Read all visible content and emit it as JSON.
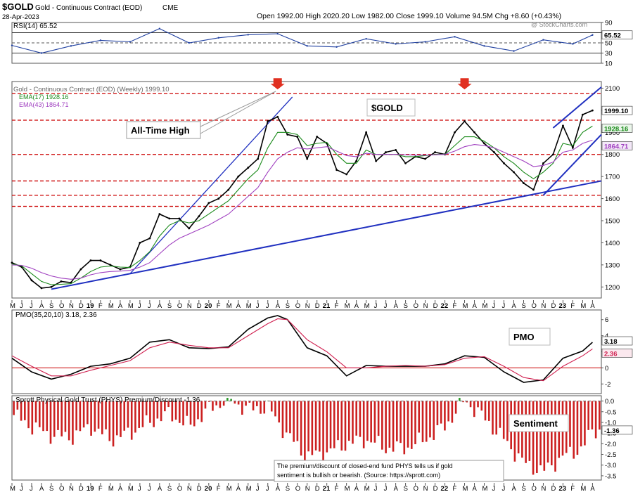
{
  "header": {
    "ticker": "$GOLD",
    "name": "Gold - Continuous Contract (EOD)",
    "exchange": "CME",
    "date": "28-Apr-2023",
    "quote": "Open 1992.00  High 2020.20  Low 1982.00  Close 1999.10  Volume 94.5M  Chg +8.60 (+0.43%)",
    "watermark": "@ StockCharts.com"
  },
  "annotations": {
    "all_time_high": "All-Time High",
    "gold_box": "$GOLD",
    "pmo_box": "PMO",
    "sentiment_box": "Sentiment",
    "note_line1": "The premium/discount of closed-end fund PHYS tells us if gold",
    "note_line2": "sentiment is bullish or bearish. (Source: https://sprott.com)"
  },
  "colors": {
    "price": "#000000",
    "ema17": "#1a8a1a",
    "ema43": "#a040c0",
    "pmo": "#000000",
    "pmo_signal": "#d02050",
    "trendline": "#2030c0",
    "resistance": "#cc0000",
    "sentiment_bar": "#cc2020",
    "sentiment_pos": "#2a9a2a",
    "rsi": "#2040a0",
    "arrow": "#e03020"
  },
  "chart_data": [
    {
      "type": "line",
      "panel": "RSI",
      "legend": "RSI(14) 65.52",
      "ylim": [
        10,
        90
      ],
      "ticks": [
        10,
        30,
        50,
        70,
        90
      ],
      "current_label": "65.52",
      "x": [
        "2018-05",
        "2018-08",
        "2018-11",
        "2019-02",
        "2019-05",
        "2019-08",
        "2019-11",
        "2020-02",
        "2020-05",
        "2020-08",
        "2020-11",
        "2021-02",
        "2021-05",
        "2021-08",
        "2021-11",
        "2022-02",
        "2022-05",
        "2022-08",
        "2022-11",
        "2023-02",
        "2023-04"
      ],
      "values": [
        45,
        30,
        44,
        55,
        52,
        78,
        50,
        60,
        66,
        68,
        44,
        42,
        58,
        48,
        52,
        62,
        44,
        34,
        56,
        48,
        65.52
      ]
    },
    {
      "type": "line",
      "panel": "price",
      "legend": [
        "Gold - Continuous Contract (EOD) (Weekly) 1999.10",
        "EMA(17) 1928.16",
        "EMA(43) 1864.71"
      ],
      "ylim": [
        1150,
        2130
      ],
      "ticks": [
        1200,
        1250,
        1300,
        1350,
        1400,
        1450,
        1500,
        1550,
        1600,
        1650,
        1700,
        1750,
        1800,
        1850,
        1900,
        1950,
        2000,
        2050,
        2100
      ],
      "value_labels": [
        "1999.10",
        "1928.16",
        "1864.71"
      ],
      "x": [
        "2018-05",
        "2018-06",
        "2018-07",
        "2018-08",
        "2018-09",
        "2018-10",
        "2018-11",
        "2018-12",
        "2019-01",
        "2019-02",
        "2019-03",
        "2019-04",
        "2019-05",
        "2019-06",
        "2019-07",
        "2019-08",
        "2019-09",
        "2019-10",
        "2019-11",
        "2019-12",
        "2020-01",
        "2020-02",
        "2020-03",
        "2020-04",
        "2020-05",
        "2020-06",
        "2020-07",
        "2020-08",
        "2020-09",
        "2020-10",
        "2020-11",
        "2020-12",
        "2021-01",
        "2021-02",
        "2021-03",
        "2021-04",
        "2021-05",
        "2021-06",
        "2021-07",
        "2021-08",
        "2021-09",
        "2021-10",
        "2021-11",
        "2021-12",
        "2022-01",
        "2022-02",
        "2022-03",
        "2022-04",
        "2022-05",
        "2022-06",
        "2022-07",
        "2022-08",
        "2022-09",
        "2022-10",
        "2022-11",
        "2022-12",
        "2023-01",
        "2023-02",
        "2023-03",
        "2023-04"
      ],
      "series": [
        {
          "name": "Gold - Continuous Contract (EOD) (Weekly) 1999.10",
          "values": [
            1310,
            1290,
            1230,
            1195,
            1200,
            1225,
            1220,
            1280,
            1320,
            1320,
            1300,
            1280,
            1290,
            1400,
            1420,
            1530,
            1510,
            1510,
            1465,
            1520,
            1580,
            1600,
            1640,
            1700,
            1740,
            1780,
            1950,
            1970,
            1890,
            1880,
            1780,
            1880,
            1850,
            1730,
            1710,
            1770,
            1900,
            1770,
            1810,
            1820,
            1760,
            1790,
            1780,
            1810,
            1800,
            1900,
            1950,
            1900,
            1850,
            1810,
            1760,
            1720,
            1670,
            1640,
            1760,
            1800,
            1930,
            1830,
            1980,
            1999.1
          ]
        },
        {
          "name": "EMA(17) 1928.16",
          "values": [
            1305,
            1295,
            1260,
            1225,
            1210,
            1212,
            1215,
            1240,
            1270,
            1290,
            1295,
            1290,
            1288,
            1320,
            1360,
            1430,
            1480,
            1500,
            1490,
            1500,
            1530,
            1560,
            1590,
            1640,
            1690,
            1730,
            1830,
            1900,
            1900,
            1890,
            1840,
            1850,
            1855,
            1800,
            1760,
            1760,
            1820,
            1800,
            1800,
            1800,
            1790,
            1790,
            1795,
            1800,
            1800,
            1840,
            1880,
            1880,
            1860,
            1830,
            1790,
            1760,
            1720,
            1690,
            1720,
            1760,
            1850,
            1840,
            1900,
            1928.16
          ]
        },
        {
          "name": "EMA(43) 1864.71",
          "values": [
            1300,
            1298,
            1285,
            1265,
            1250,
            1240,
            1235,
            1240,
            1255,
            1265,
            1270,
            1272,
            1275,
            1290,
            1310,
            1350,
            1390,
            1420,
            1440,
            1460,
            1480,
            1505,
            1530,
            1570,
            1610,
            1650,
            1720,
            1780,
            1810,
            1830,
            1825,
            1830,
            1835,
            1815,
            1795,
            1790,
            1805,
            1800,
            1800,
            1800,
            1798,
            1797,
            1797,
            1798,
            1800,
            1815,
            1835,
            1845,
            1840,
            1830,
            1810,
            1790,
            1770,
            1745,
            1750,
            1765,
            1810,
            1820,
            1850,
            1864.71
          ]
        }
      ],
      "horizontal_levels": [
        2075,
        1955,
        1800,
        1680,
        1615,
        1565
      ]
    },
    {
      "type": "line",
      "panel": "PMO",
      "legend": "PMO(35,20,10) 3.18, 2.36",
      "ylim": [
        -3.2,
        7.2
      ],
      "ticks": [
        -2,
        0,
        2,
        4,
        6
      ],
      "value_labels": [
        "3.18",
        "2.36"
      ],
      "x": [
        "2018-05",
        "2018-07",
        "2018-09",
        "2018-11",
        "2019-01",
        "2019-03",
        "2019-05",
        "2019-07",
        "2019-09",
        "2019-11",
        "2020-01",
        "2020-03",
        "2020-05",
        "2020-07",
        "2020-08",
        "2020-09",
        "2020-11",
        "2021-01",
        "2021-03",
        "2021-05",
        "2021-07",
        "2021-09",
        "2021-11",
        "2022-01",
        "2022-03",
        "2022-05",
        "2022-07",
        "2022-09",
        "2022-11",
        "2023-01",
        "2023-03",
        "2023-04"
      ],
      "series": [
        {
          "name": "PMO",
          "values": [
            1.2,
            -0.5,
            -1.4,
            -0.8,
            0.2,
            0.5,
            1.2,
            3.2,
            3.5,
            2.5,
            2.4,
            2.6,
            4.8,
            6.2,
            6.5,
            6.0,
            2.5,
            1.5,
            -1.0,
            0.3,
            0.2,
            0.2,
            0.2,
            0.5,
            1.5,
            1.3,
            -0.5,
            -1.8,
            -1.5,
            1.2,
            2.1,
            3.18
          ]
        },
        {
          "name": "Signal",
          "values": [
            1.5,
            0.2,
            -1.0,
            -1.0,
            -0.3,
            0.3,
            0.9,
            2.5,
            3.2,
            2.8,
            2.5,
            2.5,
            4.0,
            5.5,
            6.1,
            6.0,
            3.5,
            2.0,
            0.0,
            0.0,
            0.2,
            0.3,
            0.2,
            0.4,
            1.2,
            1.4,
            0.2,
            -1.2,
            -1.6,
            0.2,
            1.5,
            2.36
          ]
        }
      ]
    },
    {
      "type": "bar",
      "panel": "PHYS Premium/Discount",
      "legend": "Sprott Physical Gold Trust (PHYS) Premium/Discount -1.36",
      "ylim": [
        -3.7,
        0.25
      ],
      "ticks": [
        -3.5,
        -3.0,
        -2.5,
        -2.0,
        -1.5,
        -1.0,
        -0.5,
        0.0
      ],
      "current_label": "-1.36",
      "x": [
        "2018-05",
        "2018-07",
        "2018-09",
        "2018-11",
        "2019-01",
        "2019-03",
        "2019-05",
        "2019-07",
        "2019-09",
        "2019-11",
        "2020-01",
        "2020-03",
        "2020-05",
        "2020-07",
        "2020-09",
        "2020-11",
        "2021-01",
        "2021-03",
        "2021-05",
        "2021-07",
        "2021-09",
        "2021-11",
        "2022-01",
        "2022-03",
        "2022-05",
        "2022-07",
        "2022-09",
        "2022-11",
        "2023-01",
        "2023-03",
        "2023-04"
      ],
      "values": [
        -0.6,
        -1.2,
        -1.6,
        -1.7,
        -1.2,
        -1.8,
        -1.5,
        -1.0,
        -0.6,
        -1.2,
        -0.4,
        0.1,
        -0.4,
        -0.3,
        -1.6,
        -2.6,
        -2.4,
        -2.0,
        -1.8,
        -2.2,
        -2.2,
        -1.8,
        -1.2,
        0.05,
        -0.8,
        -1.8,
        -2.9,
        -3.3,
        -2.6,
        -2.2,
        -1.36
      ]
    }
  ],
  "x_axis": {
    "months": [
      "M",
      "J",
      "J",
      "A",
      "S",
      "O",
      "N",
      "D",
      "19",
      "F",
      "M",
      "A",
      "M",
      "J",
      "J",
      "A",
      "S",
      "O",
      "N",
      "D",
      "20",
      "F",
      "M",
      "A",
      "M",
      "J",
      "J",
      "A",
      "S",
      "O",
      "N",
      "D",
      "21",
      "F",
      "M",
      "A",
      "M",
      "J",
      "J",
      "A",
      "S",
      "O",
      "N",
      "D",
      "22",
      "F",
      "M",
      "A",
      "M",
      "J",
      "J",
      "A",
      "S",
      "O",
      "N",
      "D",
      "23",
      "F",
      "M",
      "A",
      "M"
    ]
  }
}
